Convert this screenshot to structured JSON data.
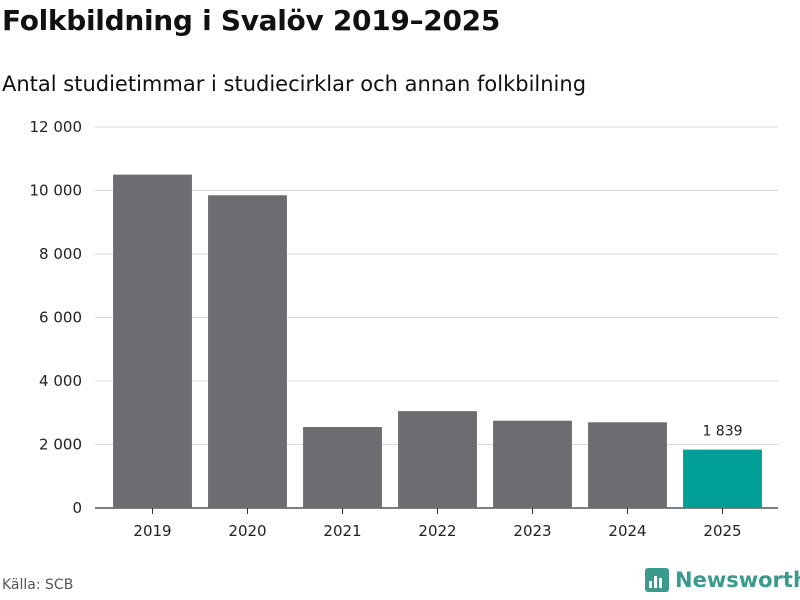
{
  "title": "Folkbildning i Svalöv 2019–2025",
  "subtitle": "Antal studietimmar i studiecirklar och annan folkbilning",
  "source": "Källa: SCB",
  "brand": "Newsworthy",
  "colors": {
    "bar_default": "#6d6c71",
    "bar_highlight": "#00a096",
    "grid": "#d9d9d9",
    "brand": "#3a9a8c"
  },
  "chart_data": {
    "type": "bar",
    "title": "Folkbildning i Svalöv 2019–2025",
    "subtitle": "Antal studietimmar i studiecirklar och annan folkbilning",
    "xlabel": "",
    "ylabel": "",
    "categories": [
      "2019",
      "2020",
      "2021",
      "2022",
      "2023",
      "2024",
      "2025"
    ],
    "values": [
      10500,
      9850,
      2550,
      3050,
      2750,
      2700,
      1839
    ],
    "highlight_index": 6,
    "data_labels": [
      null,
      null,
      null,
      null,
      null,
      null,
      "1 839"
    ],
    "ylim": [
      0,
      12000
    ],
    "yticks": [
      0,
      2000,
      4000,
      6000,
      8000,
      10000,
      12000
    ],
    "ytick_labels": [
      "0",
      "2 000",
      "4 000",
      "6 000",
      "8 000",
      "10 000",
      "12 000"
    ],
    "grid": true
  }
}
